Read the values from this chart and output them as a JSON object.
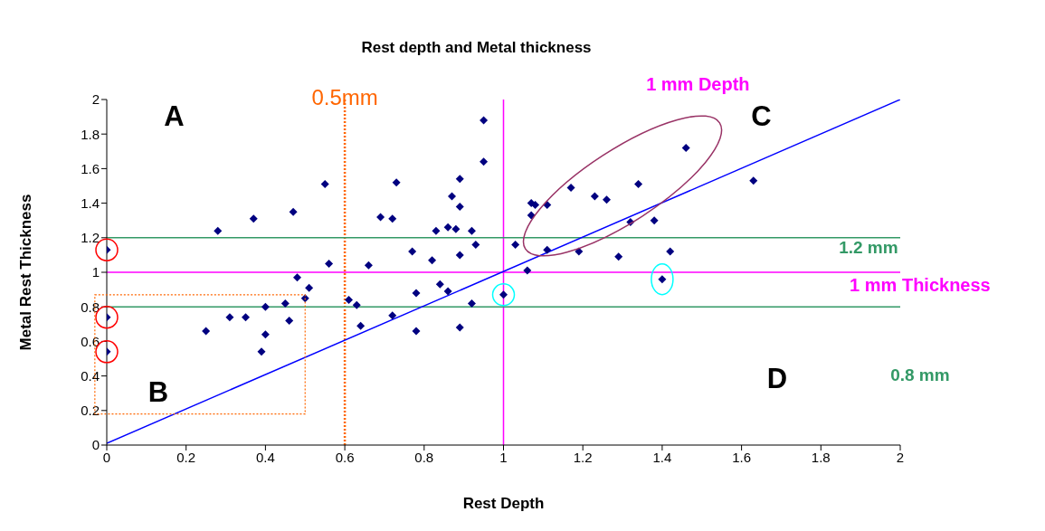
{
  "chart_data": {
    "type": "scatter",
    "title": "Rest depth and Metal thickness",
    "xlabel": "Rest Depth",
    "ylabel": "Metal Rest Thickness",
    "xlim": [
      0,
      2
    ],
    "xticks": [
      0,
      0.2,
      0.4,
      0.6,
      0.8,
      1,
      1.2,
      1.4,
      1.6,
      1.8,
      2
    ],
    "ylim": [
      0,
      2
    ],
    "yticks": [
      0,
      0.2,
      0.4,
      0.6,
      0.8,
      1,
      1.2,
      1.4,
      1.6,
      1.8,
      2
    ],
    "grid": false,
    "marker": "diamond",
    "series": [
      {
        "color": "#000080",
        "x": [
          0,
          0,
          0,
          0.28,
          0.25,
          0.31,
          0.35,
          0.37,
          0.39,
          0.4,
          0.4,
          0.45,
          0.46,
          0.47,
          0.48,
          0.5,
          0.51,
          0.55,
          0.56,
          0.61,
          0.63,
          0.64,
          0.66,
          0.69,
          0.72,
          0.73,
          0.72,
          0.77,
          0.78,
          0.78,
          0.82,
          0.83,
          0.84,
          0.86,
          0.86,
          0.87,
          0.88,
          0.89,
          0.89,
          0.89,
          0.89,
          0.92,
          0.92,
          0.93,
          0.95,
          0.95,
          1.0,
          1.03,
          1.06,
          1.07,
          1.07,
          1.08,
          1.11,
          1.11,
          1.17,
          1.19,
          1.23,
          1.26,
          1.29,
          1.32,
          1.34,
          1.38,
          1.4,
          1.42,
          1.46,
          1.63
        ],
        "values": [
          1.13,
          0.74,
          0.54,
          1.24,
          0.66,
          0.74,
          0.74,
          1.31,
          0.54,
          0.8,
          0.64,
          0.82,
          0.72,
          1.35,
          0.97,
          0.85,
          0.91,
          1.51,
          1.05,
          0.84,
          0.81,
          0.69,
          1.04,
          1.32,
          1.31,
          1.52,
          0.75,
          1.12,
          0.88,
          0.66,
          1.07,
          1.24,
          0.93,
          1.26,
          0.89,
          1.44,
          1.25,
          1.54,
          1.38,
          1.1,
          0.68,
          1.24,
          0.82,
          1.16,
          1.88,
          1.64,
          0.87,
          1.16,
          1.01,
          1.4,
          1.33,
          1.39,
          1.39,
          1.13,
          1.49,
          1.12,
          1.44,
          1.42,
          1.09,
          1.29,
          1.51,
          1.3,
          0.96,
          1.12,
          1.72,
          1.53
        ]
      },
      {
        "type": "line",
        "color": "#0000ff",
        "marker": "none",
        "x": [
          0,
          2
        ],
        "values": [
          0.01,
          2.0
        ]
      }
    ],
    "ref_lines": [
      {
        "axis": "x",
        "value": 0.6,
        "label": "0.5mm",
        "color": "#ff6600",
        "line_style": "dotted"
      },
      {
        "axis": "x",
        "value": 1,
        "label": "1 mm Depth",
        "color": "#ff00ff"
      },
      {
        "axis": "y",
        "value": 1.2,
        "label": "1.2 mm",
        "color": "#339966"
      },
      {
        "axis": "y",
        "value": 1,
        "label": "1 mm Thickness",
        "color": "#ff00ff"
      },
      {
        "axis": "y",
        "value": 0.8,
        "label": "0.8 mm",
        "color": "#339966"
      }
    ],
    "annotations": [
      "A",
      "B",
      "C",
      "D"
    ]
  }
}
